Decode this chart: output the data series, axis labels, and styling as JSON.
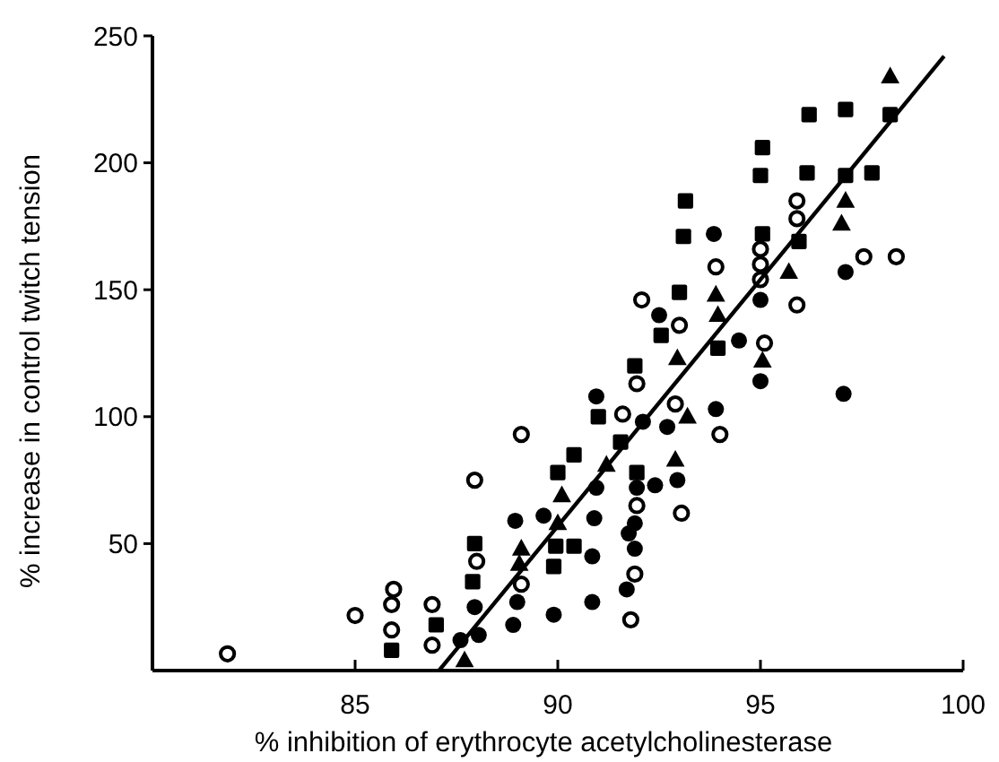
{
  "chart_data": {
    "type": "scatter",
    "xlabel": "% inhibition of erythrocyte acetylcholinesterase",
    "ylabel": "% increase in control twitch tension",
    "xlim": [
      80,
      100
    ],
    "xticks": [
      85,
      90,
      95,
      100
    ],
    "ylim": [
      0,
      250
    ],
    "yticks": [
      50,
      100,
      150,
      200,
      250
    ],
    "grid": false,
    "series": [
      {
        "color": "#000000",
        "marker": "circle",
        "x": [
          81.85,
          85.0,
          85.95,
          85.9,
          85.9,
          86.9,
          86.9,
          87.95,
          88.0,
          89.1,
          89.1,
          91.6,
          91.95,
          91.95,
          91.9,
          91.8,
          92.07,
          93.0,
          92.9,
          93.05,
          93.9,
          94.0,
          95.0,
          95.0,
          95.0,
          95.1,
          95.9,
          95.9,
          95.9,
          97.55,
          98.35
        ],
        "values": [
          6.6,
          21.7,
          32,
          26,
          16,
          26,
          10,
          75,
          43,
          93,
          34,
          101,
          113,
          65,
          38,
          20,
          146,
          136,
          105,
          62,
          159,
          93,
          166,
          160,
          154,
          129,
          185,
          178,
          144,
          163,
          163
        ]
      },
      {
        "color": "#000000",
        "marker": "circle",
        "x": [
          87.6,
          88.05,
          87.95,
          88.9,
          88.95,
          89.0,
          89.65,
          89.9,
          90.85,
          90.85,
          90.9,
          90.95,
          90.95,
          91.7,
          91.75,
          91.9,
          91.9,
          91.95,
          92.1,
          92.4,
          92.5,
          92.7,
          92.95,
          93.85,
          93.9,
          94.47,
          95.0,
          95.0,
          97.1,
          97.05
        ],
        "values": [
          12,
          14,
          25,
          18,
          59,
          27,
          61,
          22,
          27,
          45,
          60,
          72,
          108,
          32,
          54,
          58,
          48,
          72,
          98,
          73,
          140,
          96,
          75,
          172,
          103,
          130,
          146,
          114,
          157,
          109
        ]
      },
      {
        "color": "#000000",
        "marker": "square",
        "x": [
          85.9,
          87.0,
          87.9,
          87.95,
          89.9,
          89.95,
          90.4,
          90.0,
          90.4,
          91.0,
          91.55,
          91.9,
          91.95,
          92.55,
          93.0,
          93.1,
          93.15,
          93.95,
          95.05,
          95.0,
          95.05,
          95.95,
          96.15,
          96.2,
          97.1,
          97.1,
          97.75,
          98.2
        ],
        "values": [
          8,
          18,
          35,
          50,
          41,
          49,
          49,
          78,
          85,
          100,
          90,
          120,
          78,
          132,
          149,
          171,
          185,
          127,
          206,
          195,
          172,
          169,
          196,
          219,
          195,
          221,
          196,
          219
        ]
      },
      {
        "color": "#000000",
        "marker": "triangle",
        "x": [
          87.7,
          89.1,
          89.05,
          90.0,
          90.1,
          91.2,
          92.95,
          92.9,
          93.2,
          93.9,
          93.95,
          95.05,
          95.7,
          97.0,
          97.1,
          98.2
        ],
        "values": [
          4,
          48,
          42,
          58,
          69,
          81,
          123,
          83,
          100,
          148,
          140,
          122,
          157,
          176,
          185,
          234
        ]
      },
      {
        "type": "line",
        "color": "#000000",
        "marker": "none",
        "line_style": "solid",
        "x": [
          87.07,
          99.53
        ],
        "values": [
          0,
          242
        ]
      }
    ]
  }
}
